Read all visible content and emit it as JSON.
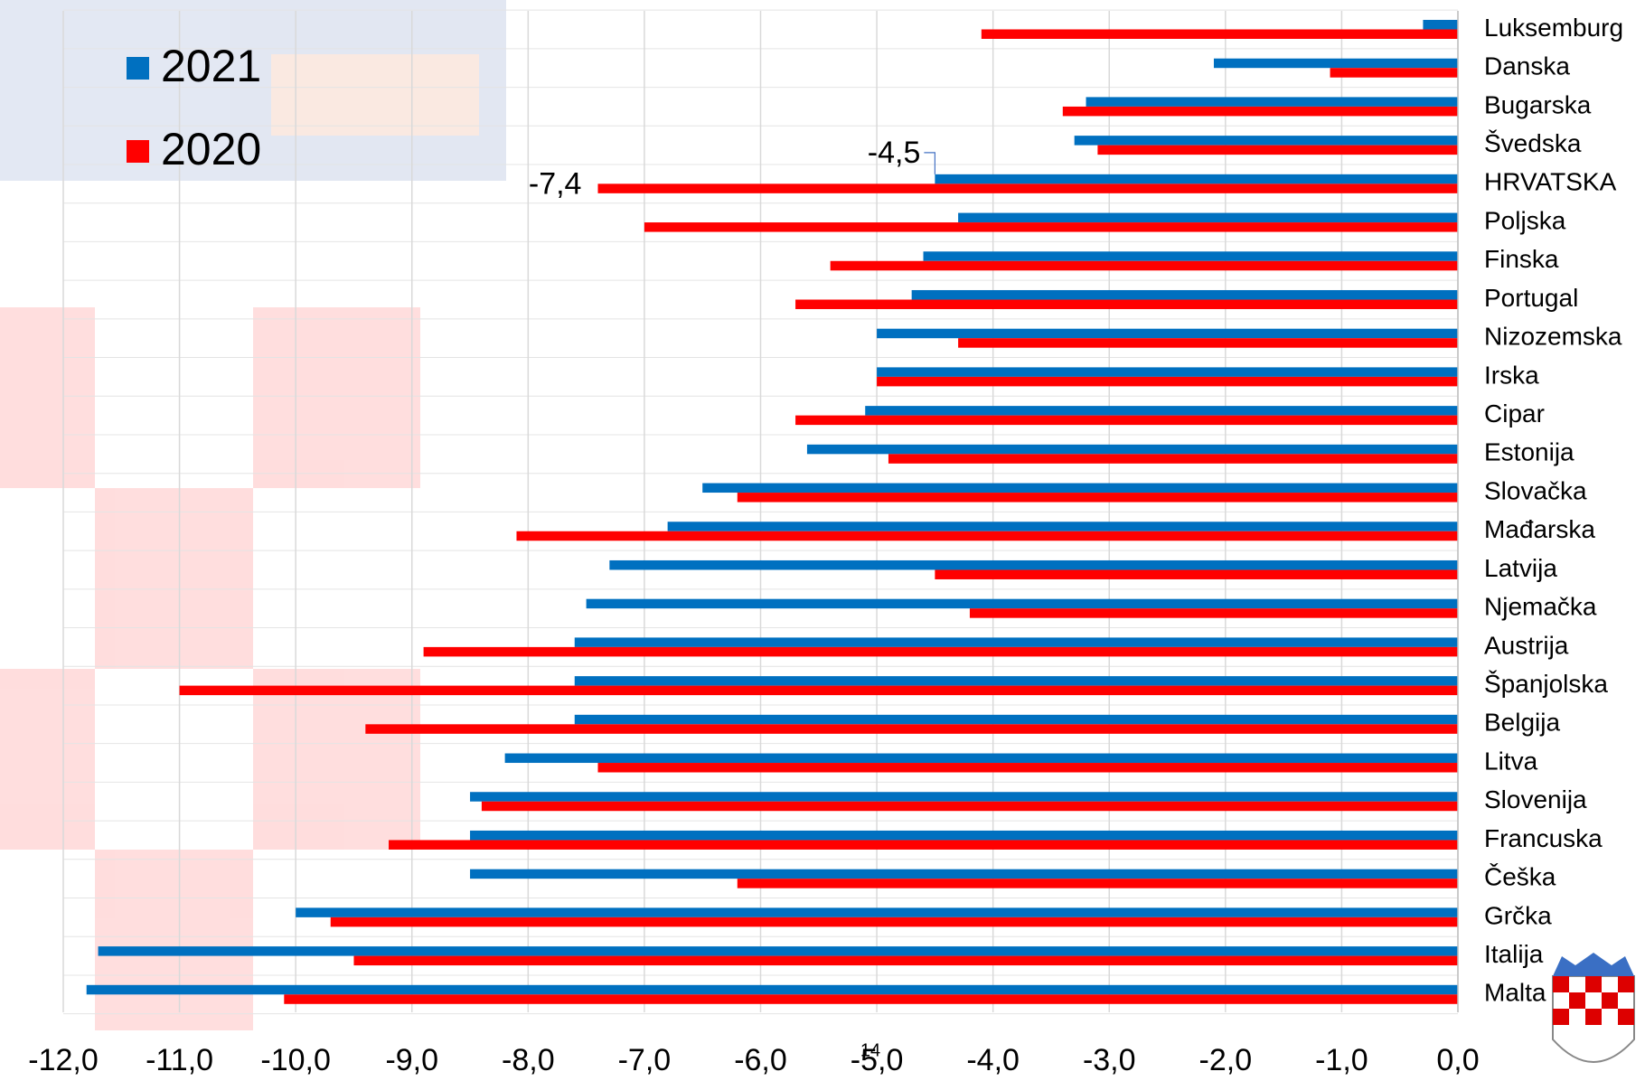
{
  "chart_data": {
    "type": "hbar",
    "categories": [
      "Luksemburg",
      "Danska",
      "Bugarska",
      "Švedska",
      "HRVATSKA",
      "Poljska",
      "Finska",
      "Portugal",
      "Nizozemska",
      "Irska",
      "Cipar",
      "Estonija",
      "Slovačka",
      "Mađarska",
      "Latvija",
      "Njemačka",
      "Austrija",
      "Španjolska",
      "Belgija",
      "Litva",
      "Slovenija",
      "Francuska",
      "Češka",
      "Grčka",
      "Italija",
      "Malta"
    ],
    "series": [
      {
        "name": "2021",
        "color": "#0070c0",
        "values": [
          -0.3,
          -2.1,
          -3.2,
          -3.3,
          -4.5,
          -4.3,
          -4.6,
          -4.7,
          -5.0,
          -5.0,
          -5.1,
          -5.6,
          -6.5,
          -6.8,
          -7.3,
          -7.5,
          -7.6,
          -7.6,
          -7.6,
          -8.2,
          -8.5,
          -8.5,
          -8.5,
          -10.0,
          -11.7,
          -11.8
        ],
        "value_labels": [
          null,
          null,
          null,
          null,
          "-4,5",
          null,
          null,
          null,
          null,
          null,
          null,
          null,
          null,
          null,
          null,
          null,
          null,
          null,
          null,
          null,
          null,
          null,
          null,
          null,
          null,
          null
        ]
      },
      {
        "name": "2020",
        "color": "#ff0000",
        "values": [
          -4.1,
          -1.1,
          -3.4,
          -3.1,
          -7.4,
          -7.0,
          -5.4,
          -5.7,
          -4.3,
          -5.0,
          -5.7,
          -4.9,
          -6.2,
          -8.1,
          -4.5,
          -4.2,
          -8.9,
          -11.0,
          -9.4,
          -7.4,
          -8.4,
          -9.2,
          -6.2,
          -9.7,
          -9.5,
          -10.1
        ],
        "value_labels": [
          null,
          null,
          null,
          null,
          "-7,4",
          null,
          null,
          null,
          null,
          null,
          null,
          null,
          null,
          null,
          null,
          null,
          null,
          null,
          null,
          null,
          null,
          null,
          null,
          null,
          null,
          null
        ]
      }
    ],
    "xlim": [
      -12,
      0
    ],
    "xticks": [
      {
        "value": -12,
        "label": "-12,0"
      },
      {
        "value": -11,
        "label": "-11,0"
      },
      {
        "value": -10,
        "label": "-10,0"
      },
      {
        "value": -9,
        "label": "-9,0"
      },
      {
        "value": -8,
        "label": "-8,0"
      },
      {
        "value": -7,
        "label": "-7,0"
      },
      {
        "value": -6,
        "label": "-6,0"
      },
      {
        "value": -5,
        "label": "-5,0"
      },
      {
        "value": -4,
        "label": "-4,0"
      },
      {
        "value": -3,
        "label": "-3,0"
      },
      {
        "value": -2,
        "label": "-2,0"
      },
      {
        "value": -1,
        "label": "-1,0"
      },
      {
        "value": 0,
        "label": "0,0"
      }
    ],
    "grid": true,
    "legend": "upper left",
    "page_number": "14"
  }
}
